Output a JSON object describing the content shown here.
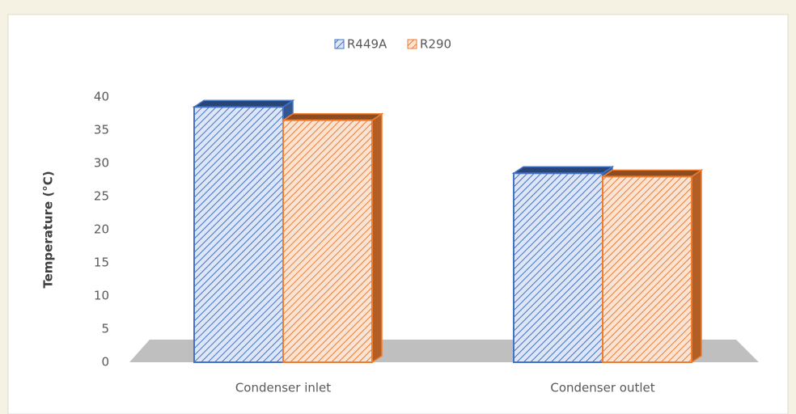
{
  "chart_data": {
    "type": "bar3d",
    "y_label": "Temperature (°C)",
    "categories": [
      "Condenser inlet",
      "Condenser outlet"
    ],
    "series": [
      {
        "name": "R449A",
        "color": "#4472c4",
        "values": [
          38.5,
          28.5
        ]
      },
      {
        "name": "R290",
        "color": "#ed7d31",
        "values": [
          36.5,
          28
        ]
      }
    ],
    "ylim": [
      0,
      40
    ],
    "yticks": [
      0,
      5,
      10,
      15,
      20,
      25,
      30,
      35,
      40
    ],
    "legend": "top",
    "grid": false
  }
}
